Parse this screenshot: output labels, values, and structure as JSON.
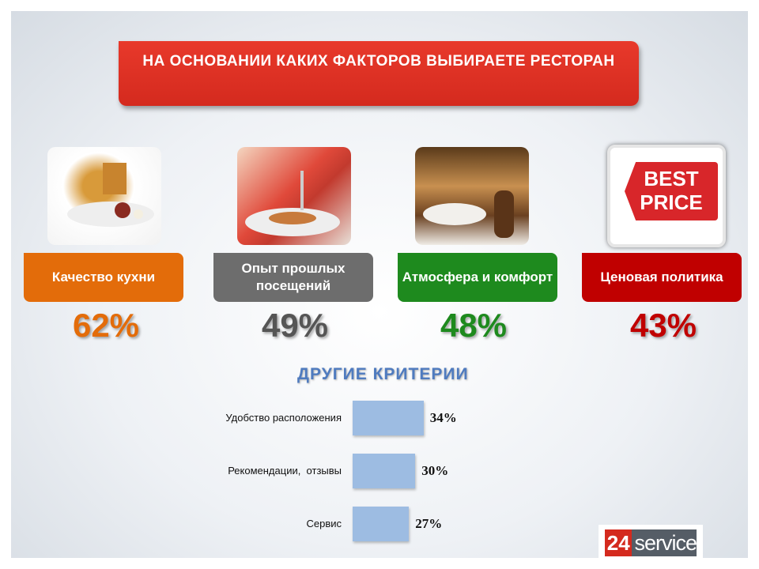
{
  "title": "НА ОСНОВАНИИ КАКИХ ФАКТОРОВ ВЫБИРАЕТЕ РЕСТОРАН",
  "factors": [
    {
      "label": "Качество кухни",
      "value": "62%",
      "color": "#e36c0a",
      "icon": "food-dish-photo"
    },
    {
      "label": "Опыт прошлых посещений",
      "value": "49%",
      "color": "#6d6d6d",
      "icon": "diner-photo"
    },
    {
      "label": "Атмосфера и комфорт",
      "value": "48%",
      "color": "#1e8a1e",
      "icon": "restaurant-interior-photo"
    },
    {
      "label": "Ценовая политика",
      "value": "43%",
      "color": "#c00000",
      "icon": "best-price-tag-photo"
    }
  ],
  "best_price_text": "BEST PRICE",
  "chart_data": {
    "type": "bar",
    "title": "ДРУГИЕ КРИТЕРИИ",
    "orientation": "horizontal",
    "categories": [
      "Удобство расположения",
      "Рекомендации,  отзывы",
      "Сервис"
    ],
    "values": [
      34,
      30,
      27
    ],
    "value_labels": [
      "34%",
      "30%",
      "27%"
    ],
    "bar_color": "#9dbce2",
    "grid": false
  },
  "logo": {
    "number": "24",
    "text": "service"
  }
}
